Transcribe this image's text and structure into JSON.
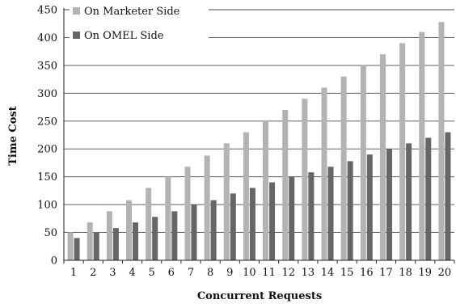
{
  "chart_data": {
    "type": "bar",
    "title": "",
    "xlabel": "Concurrent Requests",
    "ylabel": "Time Cost",
    "categories": [
      "1",
      "2",
      "3",
      "4",
      "5",
      "6",
      "7",
      "8",
      "9",
      "10",
      "11",
      "12",
      "13",
      "14",
      "15",
      "16",
      "17",
      "18",
      "19",
      "20"
    ],
    "ylim": [
      0,
      450
    ],
    "yticks": [
      0,
      50,
      100,
      150,
      200,
      250,
      300,
      350,
      400,
      450
    ],
    "grid": true,
    "legend_position": "top-left",
    "series": [
      {
        "name": "On Marketer Side",
        "color": "#b3b3b3",
        "values": [
          50,
          68,
          88,
          108,
          130,
          150,
          168,
          188,
          210,
          230,
          250,
          270,
          290,
          310,
          330,
          350,
          370,
          390,
          410,
          428
        ]
      },
      {
        "name": "On OMEL Side",
        "color": "#666666",
        "values": [
          40,
          50,
          58,
          68,
          78,
          88,
          100,
          108,
          120,
          130,
          140,
          150,
          158,
          168,
          178,
          190,
          200,
          210,
          220,
          230
        ]
      }
    ]
  }
}
